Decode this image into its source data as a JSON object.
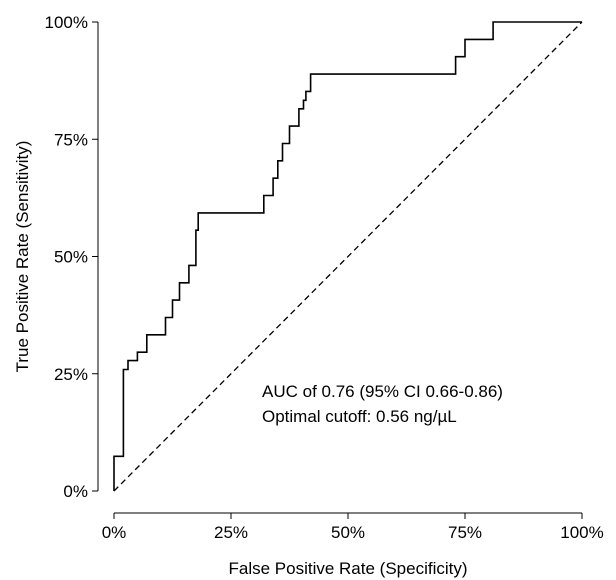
{
  "chart_data": {
    "type": "line",
    "xlabel": "False Positive Rate (Specificity)",
    "ylabel": "True Positive Rate (Sensitivity)",
    "xlim": [
      0,
      1
    ],
    "ylim": [
      0,
      1
    ],
    "x_ticks": [
      0,
      0.25,
      0.5,
      0.75,
      1
    ],
    "x_tick_labels": [
      "0%",
      "25%",
      "50%",
      "75%",
      "100%"
    ],
    "y_ticks": [
      0,
      0.25,
      0.5,
      0.75,
      1
    ],
    "y_tick_labels": [
      "0%",
      "25%",
      "50%",
      "75%",
      "100%"
    ],
    "grid": false,
    "annotations": [
      "AUC of 0.76 (95% CI 0.66-0.86)",
      "Optimal cutoff: 0.56 ng/µL"
    ],
    "series": [
      {
        "style": "solid",
        "color": "#000000",
        "x": [
          0,
          0,
          0.02,
          0.02,
          0.03,
          0.03,
          0.05,
          0.05,
          0.07,
          0.07,
          0.11,
          0.11,
          0.125,
          0.125,
          0.14,
          0.14,
          0.16,
          0.16,
          0.175,
          0.175,
          0.18,
          0.18,
          0.32,
          0.32,
          0.34,
          0.34,
          0.35,
          0.35,
          0.36,
          0.36,
          0.375,
          0.375,
          0.395,
          0.395,
          0.405,
          0.405,
          0.41,
          0.41,
          0.42,
          0.42,
          0.73,
          0.73,
          0.75,
          0.75,
          0.81,
          0.81,
          1
        ],
        "y": [
          0,
          0.074,
          0.074,
          0.259,
          0.259,
          0.278,
          0.278,
          0.296,
          0.296,
          0.333,
          0.333,
          0.37,
          0.37,
          0.407,
          0.407,
          0.444,
          0.444,
          0.481,
          0.481,
          0.556,
          0.556,
          0.593,
          0.593,
          0.63,
          0.63,
          0.667,
          0.667,
          0.704,
          0.704,
          0.741,
          0.741,
          0.778,
          0.778,
          0.815,
          0.815,
          0.833,
          0.833,
          0.852,
          0.852,
          0.889,
          0.889,
          0.926,
          0.926,
          0.963,
          0.963,
          1.0,
          1.0
        ]
      },
      {
        "style": "dashed",
        "color": "#000000",
        "x": [
          0,
          1
        ],
        "y": [
          0,
          1
        ]
      }
    ]
  }
}
